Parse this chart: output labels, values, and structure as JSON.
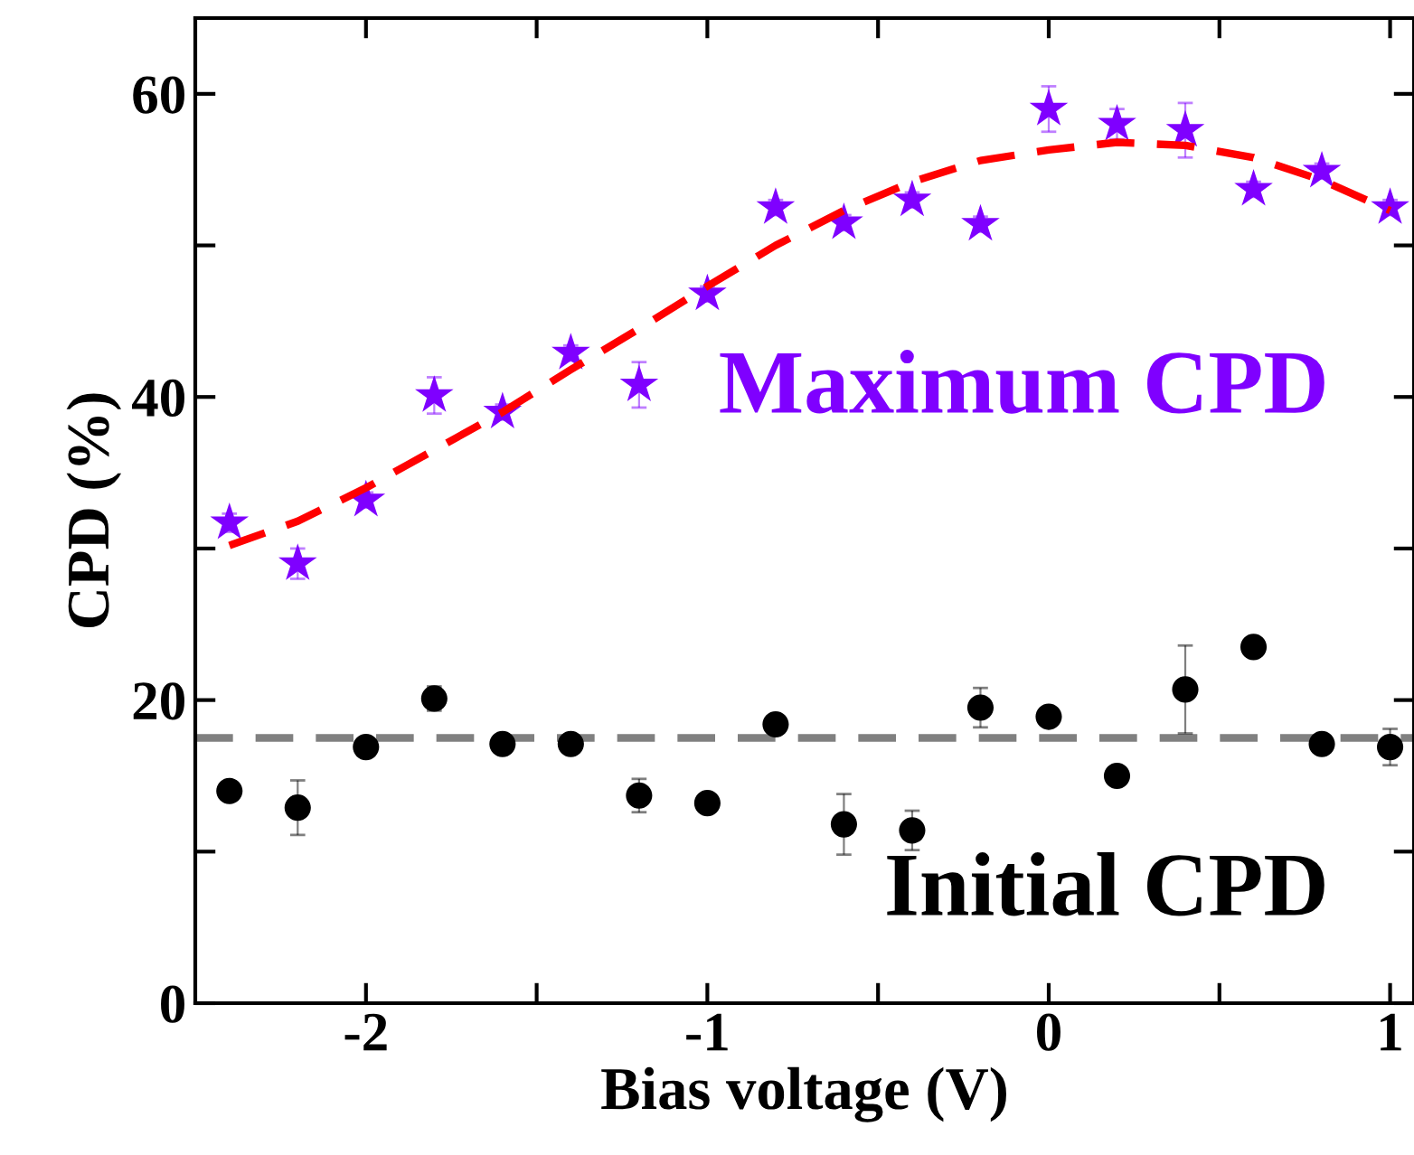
{
  "chart_data": {
    "type": "scatter",
    "xlabel": "Bias voltage (V)",
    "ylabel": "CPD (%)",
    "xlim": [
      -2.5,
      1.07
    ],
    "ylim": [
      0,
      65
    ],
    "xticks": [
      -2,
      {
        "value": -1.5,
        "label": null
      },
      -1,
      {
        "value": -0.5,
        "label": null
      },
      0,
      {
        "value": 0.5,
        "label": null
      },
      1
    ],
    "yticks": [
      0,
      {
        "value": 10,
        "label": null
      },
      20,
      {
        "value": 30,
        "label": null
      },
      40,
      {
        "value": 50,
        "label": null
      },
      60
    ],
    "grid": false,
    "x": [
      -2.4,
      -2.2,
      -2.0,
      -1.8,
      -1.6,
      -1.4,
      -1.2,
      -1.0,
      -0.8,
      -0.6,
      -0.4,
      -0.2,
      0,
      0.2,
      0.4,
      0.6,
      0.8,
      1.0
    ],
    "series": [
      {
        "type": "line",
        "color": "#ff0000",
        "line_style": "dashed",
        "marker": "none",
        "values": [
          30.2,
          31.8,
          34,
          36.5,
          39,
          41.8,
          44.5,
          47.3,
          50,
          52.3,
          54.2,
          55.6,
          56.3,
          56.8,
          56.6,
          55.8,
          54.3,
          52.3
        ]
      },
      {
        "color": "#7f00ff",
        "marker": "star",
        "values": [
          31.7,
          29.0,
          33.2,
          40.1,
          39.0,
          42.9,
          40.8,
          46.8,
          52.5,
          51.5,
          53.0,
          51.4,
          59.0,
          58.0,
          57.6,
          53.7,
          54.9,
          52.5
        ],
        "errors": [
          0.6,
          1.0,
          0.5,
          1.2,
          0.5,
          0.5,
          1.5,
          0.5,
          0.5,
          0.5,
          0.5,
          0.5,
          1.5,
          1.0,
          1.8,
          0.5,
          0.5,
          0.5
        ]
      },
      {
        "color": "#000000",
        "marker": "circle",
        "values": [
          14.0,
          12.9,
          16.9,
          20.1,
          17.1,
          17.1,
          13.7,
          13.2,
          18.4,
          11.8,
          11.4,
          19.5,
          18.9,
          15.0,
          20.7,
          23.5,
          17.1,
          16.9
        ],
        "errors": [
          0.4,
          1.8,
          0.4,
          0.8,
          0.4,
          0.4,
          1.1,
          0.4,
          0.5,
          2.0,
          1.3,
          1.3,
          0.4,
          0.4,
          2.9,
          0.4,
          0.5,
          1.2
        ]
      }
    ],
    "ref_lines": [
      {
        "axis": "y",
        "value": 17.5,
        "color": "#808080",
        "line_style": "dashed"
      }
    ],
    "annotations": [
      "Maximum CPD",
      "Initial CPD"
    ]
  }
}
